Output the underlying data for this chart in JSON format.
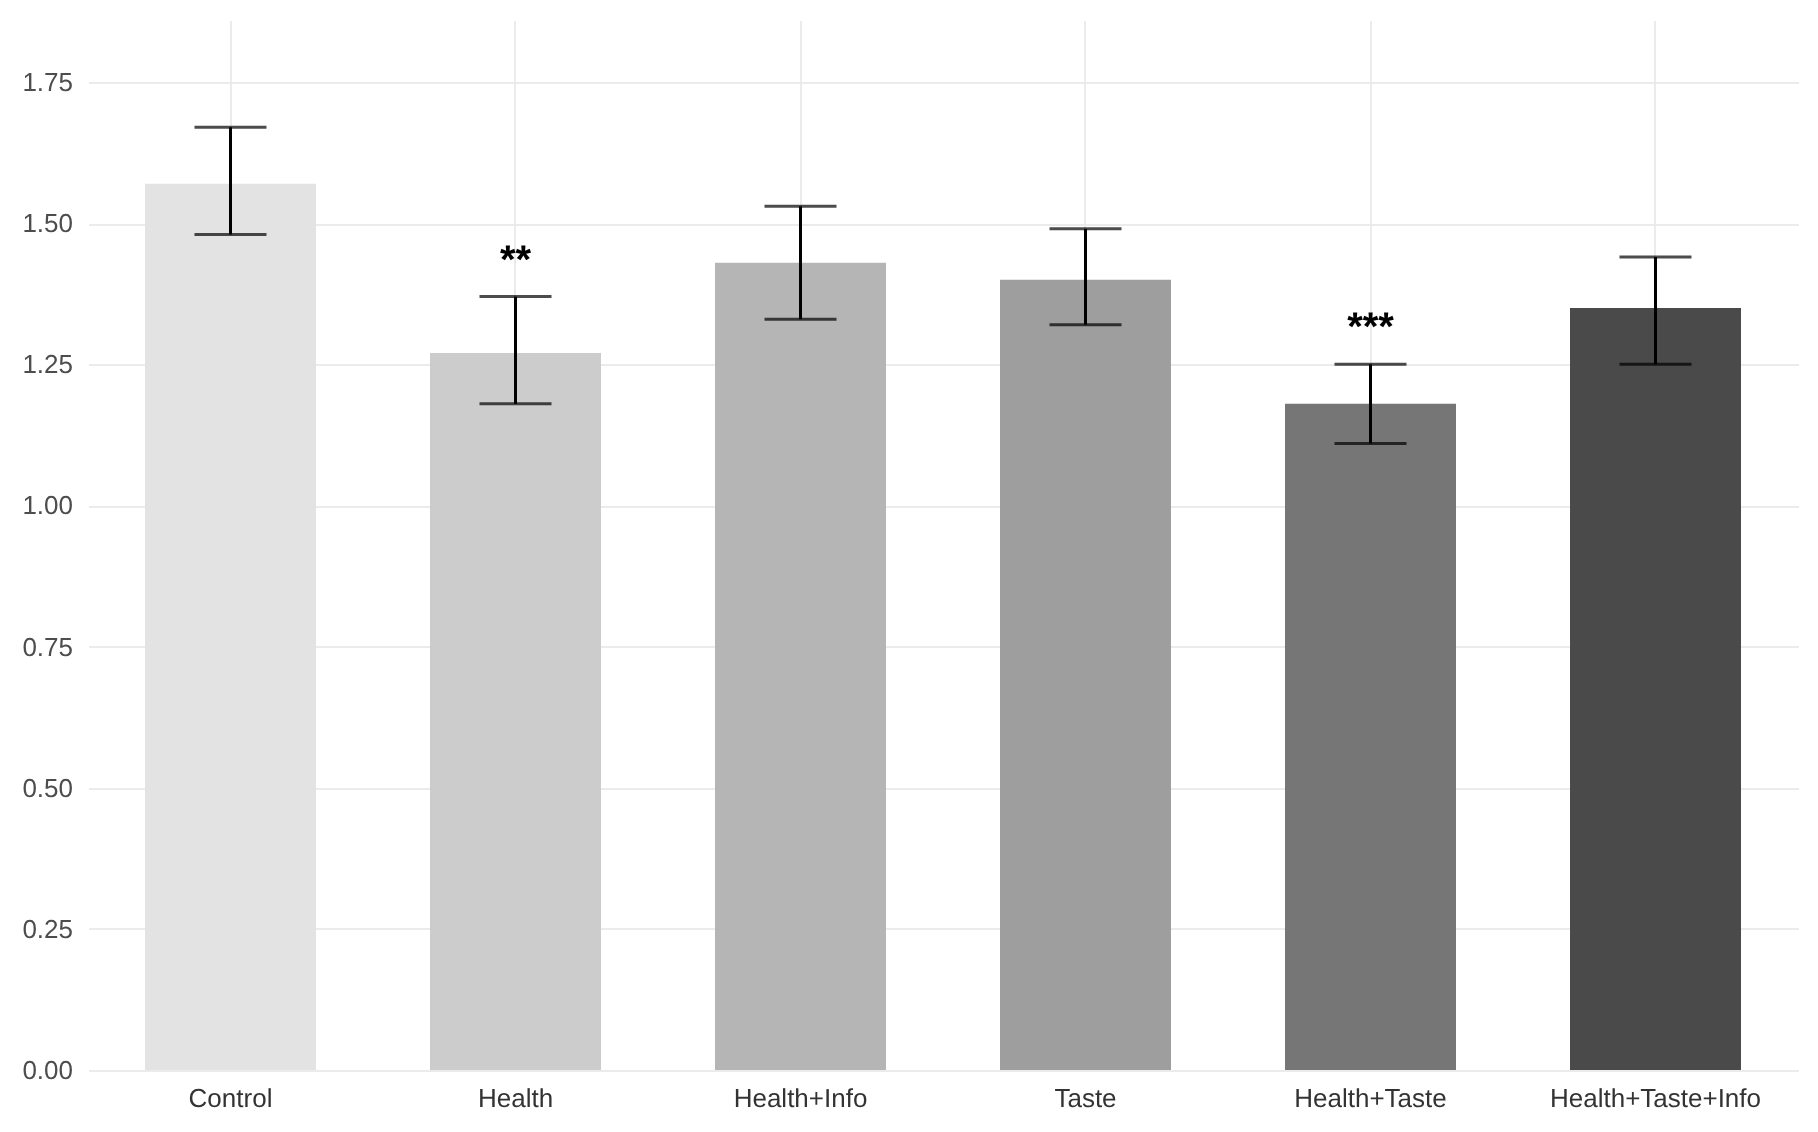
{
  "chart_data": {
    "type": "bar",
    "categories": [
      "Control",
      "Health",
      "Health+Info",
      "Taste",
      "Health+Taste",
      "Health+Taste+Info"
    ],
    "values": [
      1.57,
      1.27,
      1.43,
      1.4,
      1.18,
      1.35
    ],
    "colors": [
      "#e3e3e3",
      "#cccccc",
      "#b5b5b5",
      "#9e9e9e",
      "#767676",
      "#4a4a4a"
    ],
    "errors": [
      [
        1.48,
        1.67
      ],
      [
        1.18,
        1.37
      ],
      [
        1.33,
        1.53
      ],
      [
        1.32,
        1.49
      ],
      [
        1.11,
        1.25
      ],
      [
        1.25,
        1.44
      ]
    ],
    "ylim": [
      0,
      1.86
    ],
    "yticks": [
      {
        "value": 0,
        "label": "0.00"
      },
      0.25,
      {
        "value": 0.5,
        "label": "0.50"
      },
      0.75,
      {
        "value": 1,
        "label": "1.00"
      },
      1.25,
      {
        "value": 1.5,
        "label": "1.50"
      },
      1.75
    ],
    "annotations": [
      {
        "text": "**",
        "x": "Health",
        "y": 1.37
      },
      {
        "text": "***",
        "x": "Health+Taste",
        "y": 1.25
      }
    ],
    "grid": true
  }
}
